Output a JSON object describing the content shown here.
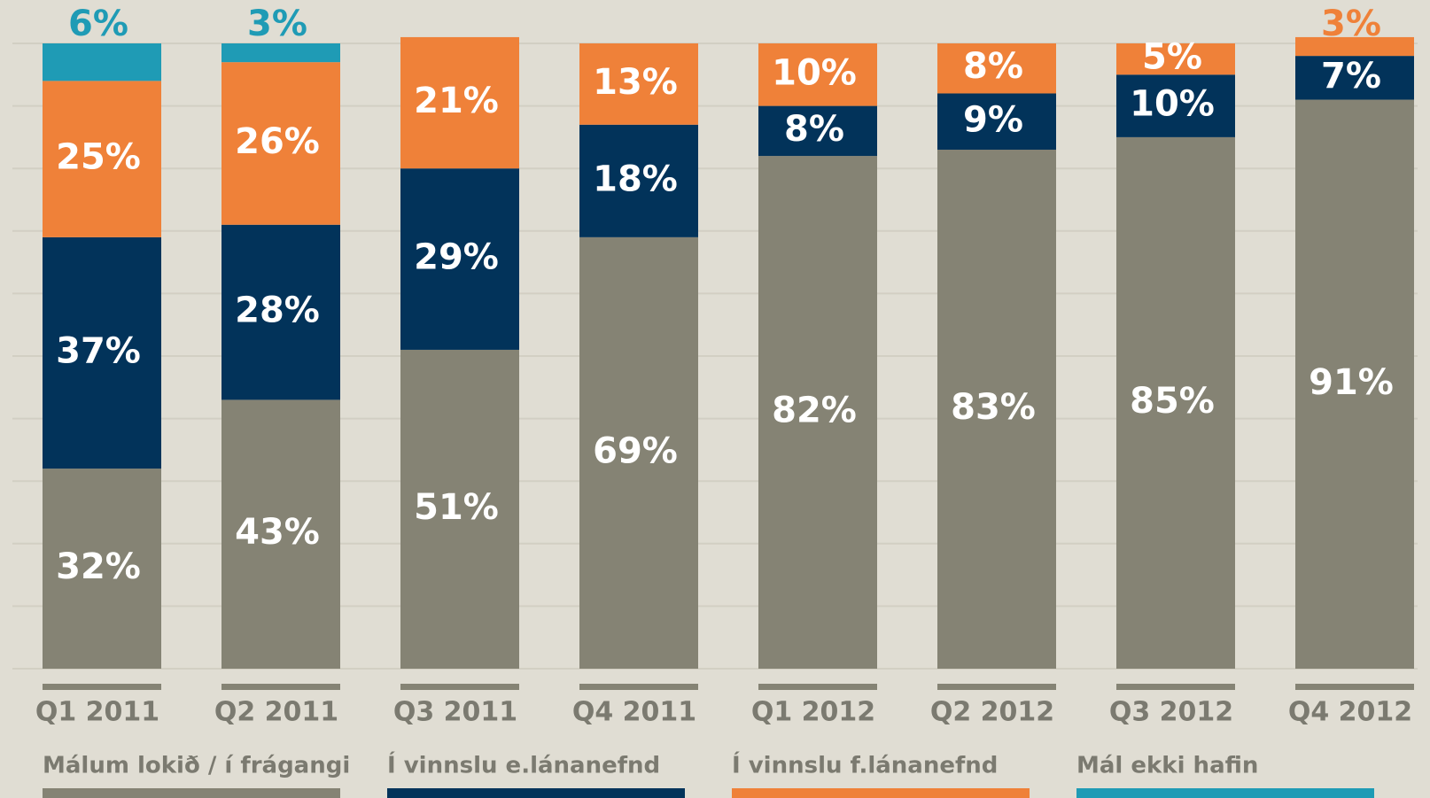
{
  "chart_data": {
    "type": "stacked_bar",
    "categories": [
      "Q1 2011",
      "Q2 2011",
      "Q3 2011",
      "Q4 2011",
      "Q1 2012",
      "Q2 2012",
      "Q3 2012",
      "Q4 2012"
    ],
    "series": [
      {
        "name": "Málum lokið / í frágangi",
        "color": "#858374",
        "values": [
          32,
          43,
          51,
          69,
          82,
          83,
          85,
          91
        ],
        "value_labels": [
          "32%",
          "43%",
          "51%",
          "69%",
          "82%",
          "83%",
          "85%",
          "91%"
        ]
      },
      {
        "name": "Í vinnslu e.lánanefnd",
        "color": "#02335a",
        "values": [
          37,
          28,
          29,
          18,
          8,
          9,
          10,
          7
        ],
        "value_labels": [
          "37%",
          "28%",
          "29%",
          "18%",
          "8%",
          "9%",
          "10%",
          "7%"
        ]
      },
      {
        "name": "Í vinnslu f.lánanefnd",
        "color": "#ef8139",
        "values": [
          25,
          26,
          21,
          13,
          10,
          8,
          5,
          3
        ],
        "value_labels": [
          "25%",
          "26%",
          "21%",
          "13%",
          "10%",
          "8%",
          "5%",
          "3%"
        ]
      },
      {
        "name": "Mál ekki hafin",
        "color": "#1f9bb5",
        "values": [
          6,
          3,
          0,
          0,
          0,
          0,
          0,
          0
        ],
        "value_labels": [
          "6%",
          "3%",
          null,
          null,
          null,
          null,
          null,
          null
        ]
      }
    ],
    "ylim": [
      0,
      100
    ],
    "yticks": [
      0,
      10,
      20,
      30,
      40,
      50,
      60,
      70,
      80,
      90,
      100
    ],
    "grid": true
  }
}
